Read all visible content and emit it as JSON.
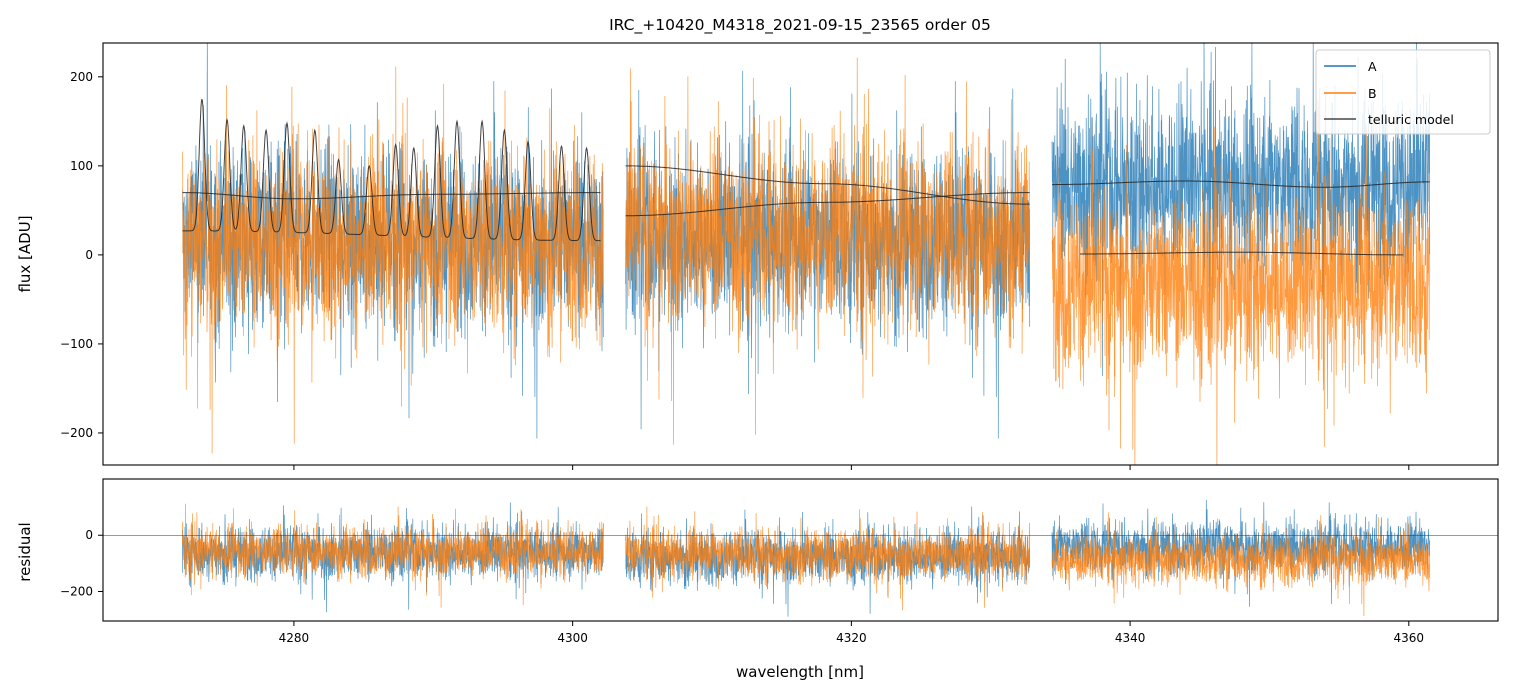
{
  "chart_data": {
    "type": "line",
    "title": "IRC_+10420_M4318_2021-09-15_23565  order 05",
    "xlabel": "wavelength [nm]",
    "x_ticks": [
      "4280",
      "4300",
      "4320",
      "4340",
      "4360"
    ],
    "x_tick_values": [
      4280,
      4300,
      4320,
      4340,
      4360
    ],
    "xlim": [
      4266.3,
      4366.4
    ],
    "legend_position": "top-right",
    "colors": {
      "A": "#1f77b4",
      "B": "#ff7f0e",
      "telluric": "#222222"
    },
    "segments": [
      {
        "x_start": 4272.0,
        "x_end": 4302.2
      },
      {
        "x_start": 4303.8,
        "x_end": 4332.8
      },
      {
        "x_start": 4334.4,
        "x_end": 4361.5
      }
    ],
    "panels": [
      {
        "name": "flux",
        "ylabel": "flux [ADU]",
        "ylim": [
          -236,
          238
        ],
        "y_ticks": [
          "200",
          "100",
          "0",
          "−100",
          "−200"
        ],
        "y_tick_values": [
          200,
          100,
          0,
          -100,
          -200
        ],
        "series": [
          {
            "name": "A",
            "segment_levels": [
              20,
              20,
              80
            ],
            "noise": 95
          },
          {
            "name": "B",
            "segment_levels": [
              15,
              25,
              -30
            ],
            "noise": 100
          }
        ],
        "telluric_model": [
          {
            "name": "telluric model",
            "x": [
              4272.0,
              4280,
              4290,
              4302.0
            ],
            "y": [
              70,
              63,
              68,
              70
            ]
          },
          {
            "x": [
              4272.0,
              4302.0
            ],
            "y": [
              27,
              16
            ],
            "peaks": [
              4273.4,
              4275.2,
              4276.4,
              4278.0,
              4279.5,
              4281.5,
              4283.2,
              4285.4,
              4287.3,
              4288.6,
              4290.3,
              4291.7,
              4293.5,
              4295.1,
              4296.8,
              4299.2,
              4301.0
            ],
            "peak_heights": [
              175,
              152,
              145,
              140,
              148,
              140,
              107,
              100,
              124,
              120,
              145,
              150,
              150,
              140,
              127,
              122,
              120
            ]
          },
          {
            "x": [
              4303.8,
              4318,
              4332.8
            ],
            "y": [
              100,
              80,
              57
            ]
          },
          {
            "x": [
              4303.8,
              4318,
              4332.8
            ],
            "y": [
              44,
              59,
              70
            ]
          },
          {
            "x": [
              4334.4,
              4344,
              4354,
              4361.5
            ],
            "y": [
              79,
              83,
              76,
              82
            ]
          },
          {
            "x": [
              4336.4,
              4348,
              4359.6
            ],
            "y": [
              1,
              3,
              0
            ]
          }
        ]
      },
      {
        "name": "residual",
        "ylabel": "residual",
        "ylim": [
          -305,
          200
        ],
        "y_ticks": [
          "0",
          "−200"
        ],
        "y_tick_values": [
          0,
          -200
        ],
        "zero_line": 0,
        "series": [
          {
            "name": "A",
            "segment_levels": [
              -60,
              -75,
              -40
            ],
            "noise": 90
          },
          {
            "name": "B",
            "segment_levels": [
              -55,
              -65,
              -85
            ],
            "noise": 85
          }
        ]
      }
    ],
    "legend": [
      "A",
      "B",
      "telluric model"
    ]
  }
}
